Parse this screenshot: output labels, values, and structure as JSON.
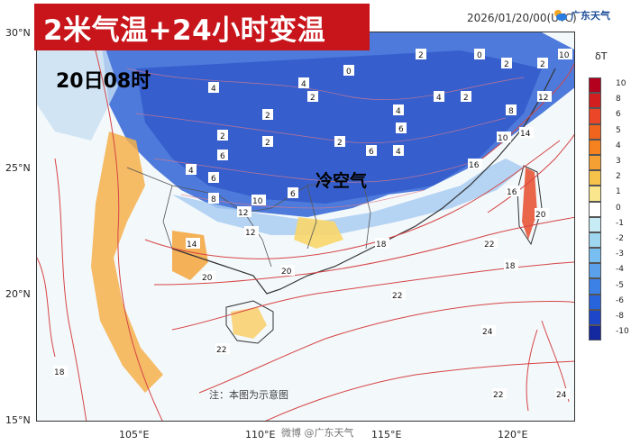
{
  "title": "2米气温+24小时变温",
  "datetime": "2026/01/20/00(UTC)",
  "brand": "广东天气",
  "time_label": "20日08时",
  "region_label": "冷空气",
  "note": "注：本图为示意图",
  "watermark": "微博 @广东天气",
  "lat_ticks": [
    "30°N",
    "25°N",
    "20°N",
    "15°N"
  ],
  "lon_ticks": [
    "105°E",
    "110°E",
    "115°E",
    "120°E"
  ],
  "colorbar": {
    "unit": "δT",
    "levels": [
      "10",
      "8",
      "6",
      "5",
      "4",
      "3",
      "2",
      "1",
      "0",
      "-1",
      "-2",
      "-3",
      "-4",
      "-5",
      "-6",
      "-8",
      "-10"
    ],
    "colors": [
      "#b4001e",
      "#d21e1e",
      "#eb4628",
      "#f0641e",
      "#f5821e",
      "#f5a032",
      "#f7c34b",
      "#fae68c",
      "#ffffff",
      "#c8ecf5",
      "#a0d7f0",
      "#78bef0",
      "#5aa0eb",
      "#3c82e6",
      "#2864dc",
      "#1e46c8",
      "#1428a0"
    ]
  },
  "contour_labels": [
    {
      "v": "2"
    },
    {
      "v": "0"
    },
    {
      "v": "2"
    },
    {
      "v": "2"
    },
    {
      "v": "10"
    },
    {
      "v": "4"
    },
    {
      "v": "2"
    },
    {
      "v": "0"
    },
    {
      "v": "4"
    },
    {
      "v": "8"
    },
    {
      "v": "12"
    },
    {
      "v": "4"
    },
    {
      "v": "2"
    },
    {
      "v": "2"
    },
    {
      "v": "2"
    },
    {
      "v": "4"
    },
    {
      "v": "6"
    },
    {
      "v": "10"
    },
    {
      "v": "14"
    },
    {
      "v": "2"
    },
    {
      "v": "6"
    },
    {
      "v": "2"
    },
    {
      "v": "6"
    },
    {
      "v": "4"
    },
    {
      "v": "16"
    },
    {
      "v": "4"
    },
    {
      "v": "6"
    },
    {
      "v": "8"
    },
    {
      "v": "10"
    },
    {
      "v": "6"
    },
    {
      "v": "12"
    },
    {
      "v": "16"
    },
    {
      "v": "20"
    },
    {
      "v": "12"
    },
    {
      "v": "14"
    },
    {
      "v": "18"
    },
    {
      "v": "20"
    },
    {
      "v": "22"
    },
    {
      "v": "18"
    },
    {
      "v": "20"
    },
    {
      "v": "22"
    },
    {
      "v": "22"
    },
    {
      "v": "24"
    },
    {
      "v": "18"
    },
    {
      "v": "24"
    },
    {
      "v": "22"
    }
  ]
}
